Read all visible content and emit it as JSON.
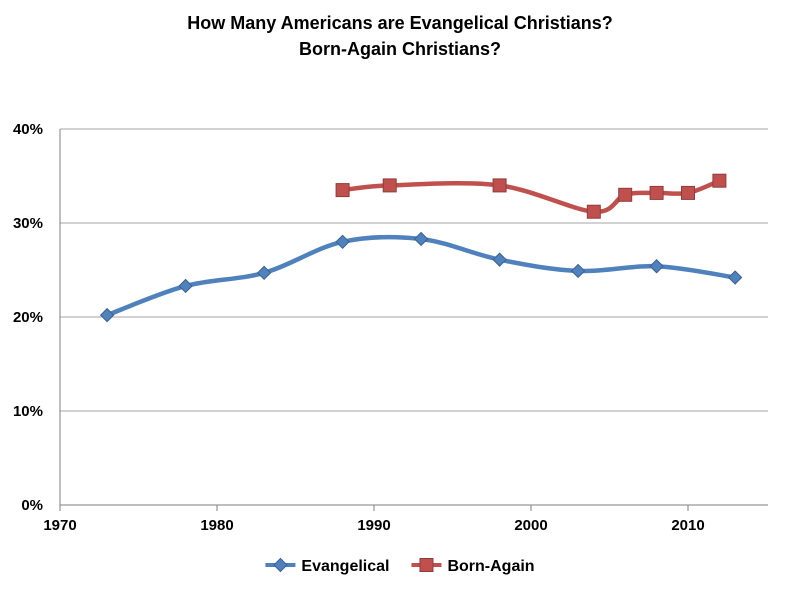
{
  "title_lines": [
    "How Many Americans are Evangelical Christians?",
    "Born-Again Christians?"
  ],
  "chart_data": {
    "type": "line",
    "title": "How Many Americans are Evangelical Christians? Born-Again Christians?",
    "xlabel": "",
    "ylabel": "",
    "xlim": [
      1970,
      2015
    ],
    "ylim": [
      0,
      40
    ],
    "x_ticks": [
      1970,
      1980,
      1990,
      2000,
      2010
    ],
    "x_tick_labels": [
      "1970",
      "1980",
      "1990",
      "2000",
      "2010"
    ],
    "y_ticks": [
      0,
      10,
      20,
      30,
      40
    ],
    "y_tick_labels": [
      "0%",
      "10%",
      "20%",
      "30%",
      "40%"
    ],
    "grid": "horizontal",
    "legend_position": "bottom",
    "series": [
      {
        "name": "Evangelical",
        "color": "#4F81BD",
        "marker": "diamond",
        "x": [
          1973,
          1978,
          1983,
          1988,
          1993,
          1998,
          2003,
          2008,
          2013
        ],
        "y": [
          20.2,
          23.3,
          24.7,
          28.0,
          28.3,
          26.1,
          24.9,
          25.4,
          24.2
        ]
      },
      {
        "name": "Born-Again",
        "color": "#C0504D",
        "marker": "square",
        "x": [
          1988,
          1991,
          1998,
          2004,
          2006,
          2008,
          2010,
          2012
        ],
        "y": [
          33.5,
          34.0,
          34.0,
          31.2,
          33.0,
          33.2,
          33.2,
          34.5
        ]
      }
    ]
  }
}
